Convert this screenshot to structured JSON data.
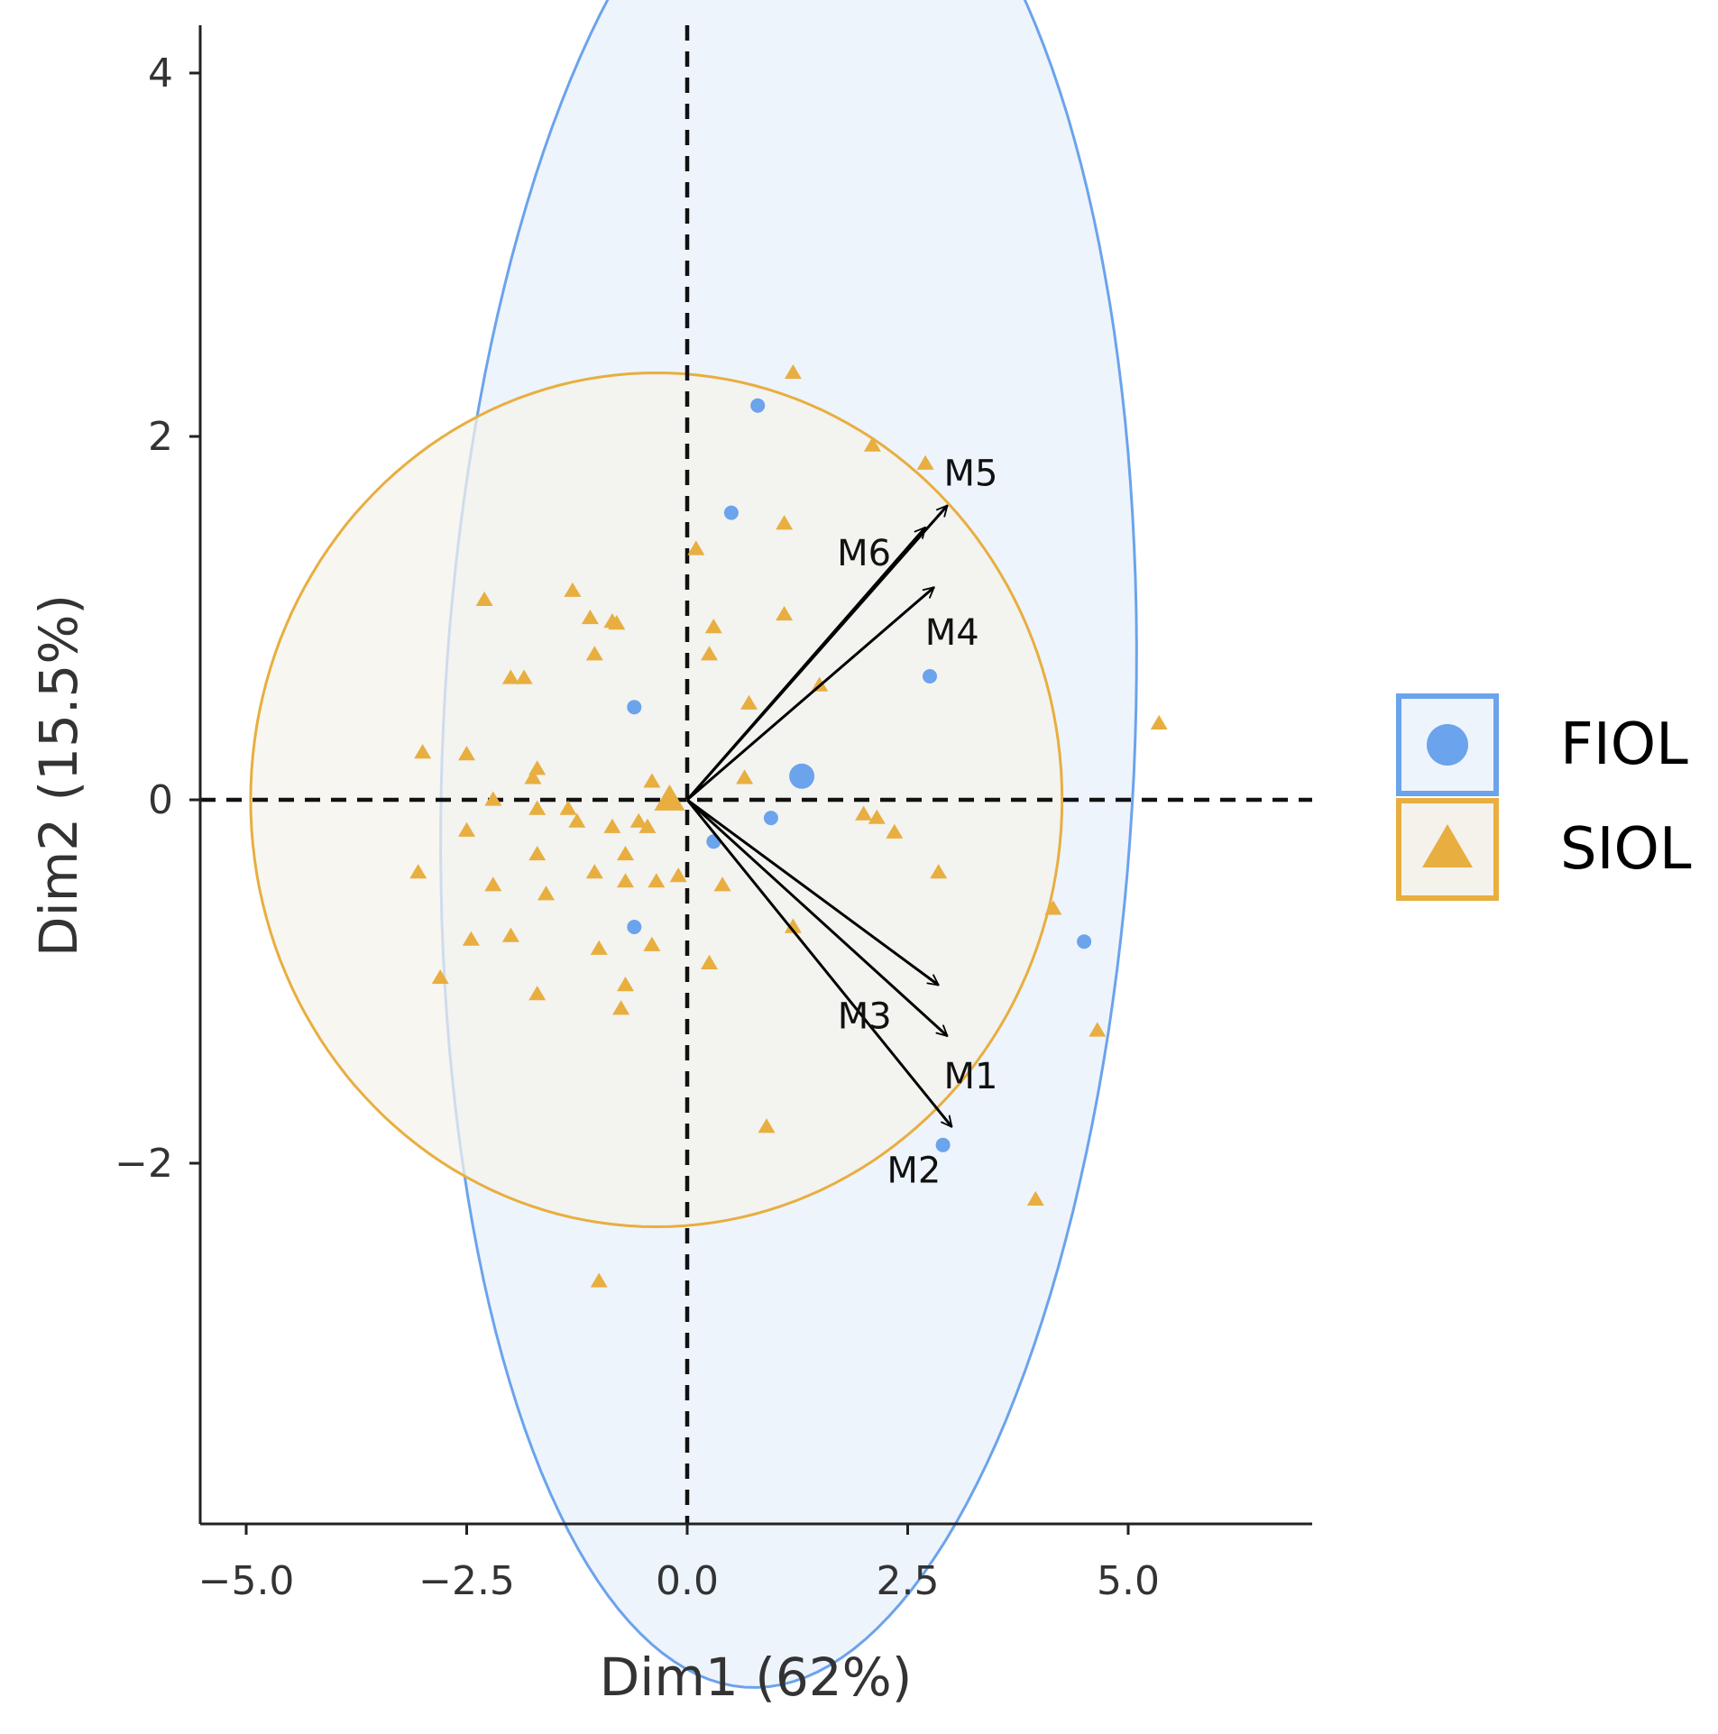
{
  "chart_data": {
    "type": "scatter",
    "subtype": "pca-biplot",
    "xlabel": "Dim1 (62%)",
    "ylabel": "Dim2 (15.5%)",
    "xlim": [
      -5.5,
      7.1
    ],
    "ylim": [
      -3.95,
      4.25
    ],
    "x_ticks": [
      -5.0,
      -2.5,
      0.0,
      2.5,
      5.0
    ],
    "x_tick_labels": [
      "−5.0",
      "−2.5",
      "0.0",
      "2.5",
      "5.0"
    ],
    "y_ticks": [
      -2,
      0,
      2,
      4
    ],
    "y_tick_labels": [
      "−2",
      "0",
      "2",
      "4"
    ],
    "reference_lines": {
      "x": 0,
      "y": 0,
      "style": "dashed"
    },
    "legend_position": "right",
    "series": [
      {
        "name": "FIOL",
        "marker": "circle",
        "color": "#6ba3ec",
        "ellipse": {
          "center": [
            1.15,
            0.28
          ],
          "semi_axes": [
            3.9,
            5.2
          ],
          "rotation_deg": 170,
          "fill": "#eef4fc"
        },
        "centroid": [
          1.3,
          0.13
        ],
        "points": [
          [
            0.8,
            2.17
          ],
          [
            0.5,
            1.58
          ],
          [
            2.75,
            0.68
          ],
          [
            -0.6,
            0.51
          ],
          [
            0.95,
            -0.1
          ],
          [
            0.3,
            -0.23
          ],
          [
            -0.6,
            -0.7
          ],
          [
            4.5,
            -0.78
          ],
          [
            2.9,
            -1.9
          ]
        ]
      },
      {
        "name": "SIOL",
        "marker": "triangle",
        "color": "#e8ae3f",
        "ellipse": {
          "center": [
            -0.35,
            0.0
          ],
          "semi_axes": [
            4.6,
            2.35
          ],
          "rotation_deg": 0,
          "fill": "#f5f2ec"
        },
        "centroid": [
          -0.2,
          0.0
        ],
        "points": [
          [
            1.2,
            2.35
          ],
          [
            2.1,
            1.95
          ],
          [
            2.7,
            1.85
          ],
          [
            1.1,
            1.52
          ],
          [
            0.1,
            1.38
          ],
          [
            -1.3,
            1.15
          ],
          [
            -2.3,
            1.1
          ],
          [
            -1.1,
            1.0
          ],
          [
            -0.85,
            0.98
          ],
          [
            -0.8,
            0.97
          ],
          [
            1.1,
            1.02
          ],
          [
            0.3,
            0.95
          ],
          [
            0.25,
            0.8
          ],
          [
            -1.05,
            0.8
          ],
          [
            -2.0,
            0.67
          ],
          [
            -1.85,
            0.67
          ],
          [
            0.7,
            0.53
          ],
          [
            1.5,
            0.63
          ],
          [
            5.35,
            0.42
          ],
          [
            -3.0,
            0.26
          ],
          [
            -2.5,
            0.25
          ],
          [
            -1.7,
            0.17
          ],
          [
            -1.75,
            0.12
          ],
          [
            -0.4,
            0.1
          ],
          [
            0.65,
            0.12
          ],
          [
            -2.2,
            0.0
          ],
          [
            -1.7,
            -0.05
          ],
          [
            -1.35,
            -0.05
          ],
          [
            -1.25,
            -0.12
          ],
          [
            -0.85,
            -0.15
          ],
          [
            -0.55,
            -0.12
          ],
          [
            -0.45,
            -0.15
          ],
          [
            -2.5,
            -0.17
          ],
          [
            -0.7,
            -0.3
          ],
          [
            -1.7,
            -0.3
          ],
          [
            2.0,
            -0.08
          ],
          [
            2.15,
            -0.1
          ],
          [
            2.35,
            -0.18
          ],
          [
            -3.05,
            -0.4
          ],
          [
            -1.05,
            -0.4
          ],
          [
            -0.7,
            -0.45
          ],
          [
            -0.35,
            -0.45
          ],
          [
            -0.1,
            -0.42
          ],
          [
            0.4,
            -0.47
          ],
          [
            2.85,
            -0.4
          ],
          [
            -2.2,
            -0.47
          ],
          [
            -1.6,
            -0.52
          ],
          [
            4.15,
            -0.6
          ],
          [
            1.2,
            -0.7
          ],
          [
            -2.45,
            -0.77
          ],
          [
            -2.0,
            -0.75
          ],
          [
            -1.0,
            -0.82
          ],
          [
            -0.4,
            -0.8
          ],
          [
            0.25,
            -0.9
          ],
          [
            -2.8,
            -0.98
          ],
          [
            -0.7,
            -1.02
          ],
          [
            -1.7,
            -1.07
          ],
          [
            -0.75,
            -1.15
          ],
          [
            4.65,
            -1.27
          ],
          [
            0.9,
            -1.8
          ],
          [
            3.95,
            -2.2
          ],
          [
            -1.0,
            -2.65
          ]
        ]
      }
    ],
    "loadings": [
      {
        "label": "M1",
        "x": 2.95,
        "y": -1.3
      },
      {
        "label": "M2",
        "x": 3.0,
        "y": -1.8
      },
      {
        "label": "M3",
        "x": 2.85,
        "y": -1.02
      },
      {
        "label": "M4",
        "x": 2.8,
        "y": 1.17
      },
      {
        "label": "M5",
        "x": 2.95,
        "y": 1.62
      },
      {
        "label": "M6",
        "x": 2.7,
        "y": 1.5
      }
    ]
  }
}
